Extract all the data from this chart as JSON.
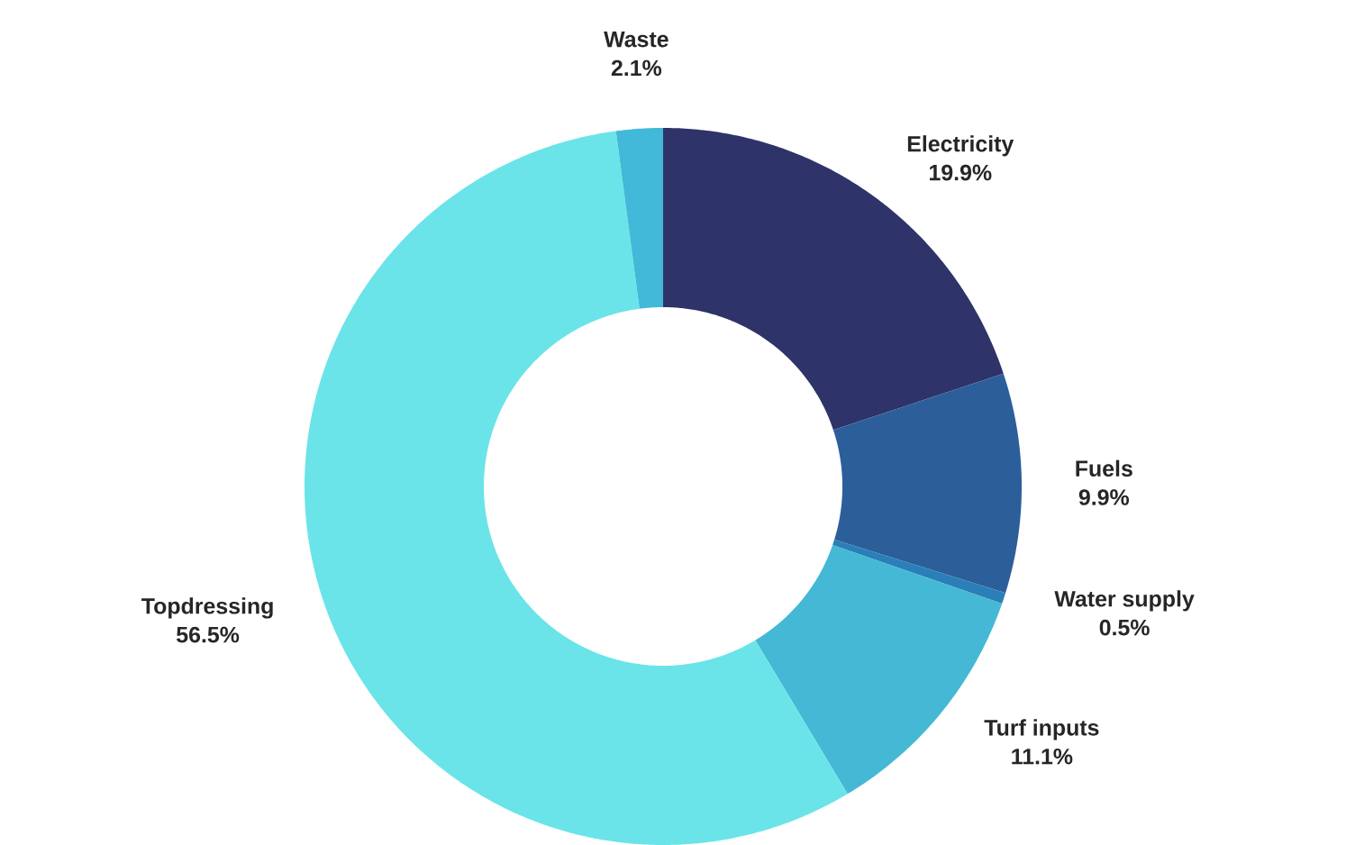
{
  "chart_data": {
    "type": "donut",
    "categories": [
      "Electricity",
      "Fuels",
      "Water supply",
      "Turf inputs",
      "Topdressing",
      "Waste"
    ],
    "values": [
      19.9,
      9.9,
      0.5,
      11.1,
      56.5,
      2.1
    ],
    "value_labels": [
      "19.9%",
      "9.9%",
      "0.5%",
      "11.1%",
      "56.5%",
      "2.1%"
    ],
    "colors": [
      "#2e3369",
      "#2c5f9a",
      "#2a7fb8",
      "#45b8d6",
      "#6ae4e8",
      "#42b9d8"
    ]
  }
}
